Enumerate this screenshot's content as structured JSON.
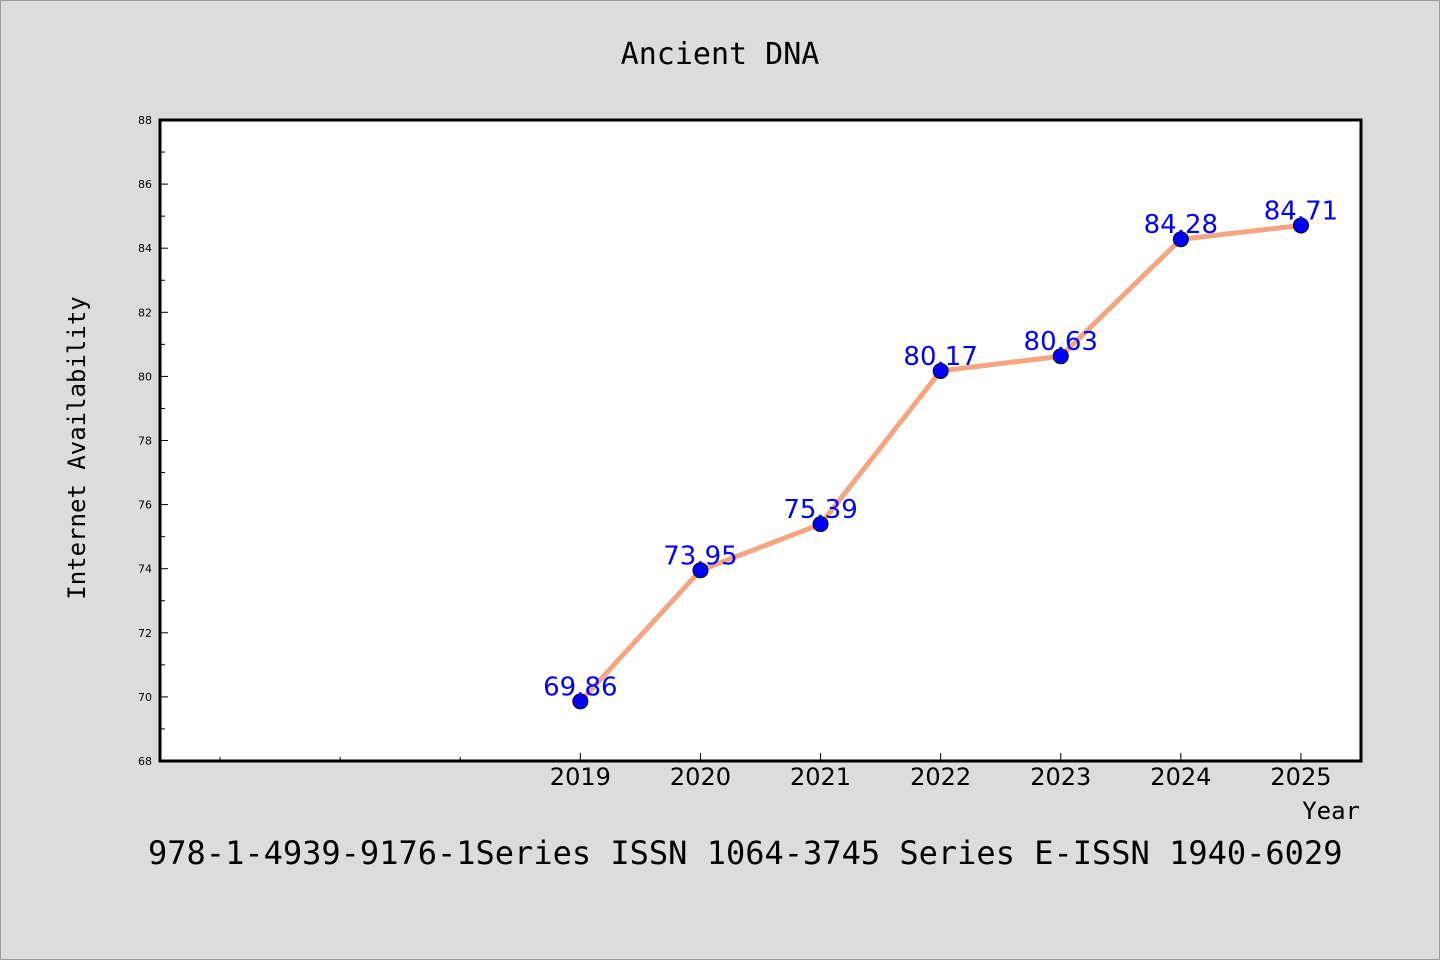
{
  "chart_data": {
    "type": "line",
    "title": "Ancient DNA",
    "xlabel": "Year",
    "ylabel": "Internet Availability",
    "x": [
      2019,
      2020,
      2021,
      2022,
      2023,
      2024,
      2025
    ],
    "xtick_labels": [
      "2019",
      "2020",
      "2021",
      "2022",
      "2023",
      "2024",
      "2025"
    ],
    "xlim": [
      2015.5,
      2025.5
    ],
    "ylim": [
      68,
      88
    ],
    "yticks": [
      68,
      70,
      72,
      74,
      76,
      78,
      80,
      82,
      84,
      86,
      88
    ],
    "series": [
      {
        "values": [
          69.86,
          73.95,
          75.39,
          80.17,
          80.63,
          84.28,
          84.71
        ],
        "labels": [
          "69.86",
          "73.95",
          "75.39",
          "80.17",
          "80.63",
          "84.28",
          "84.71"
        ],
        "line_color": "#f4a582",
        "marker_color": "#0000ff",
        "label_color": "#0000ff"
      }
    ],
    "grid": false,
    "legend": "none"
  },
  "footer": {
    "text": "978-1-4939-9176-1Series ISSN 1064-3745 Series E-ISSN 1940-6029"
  }
}
